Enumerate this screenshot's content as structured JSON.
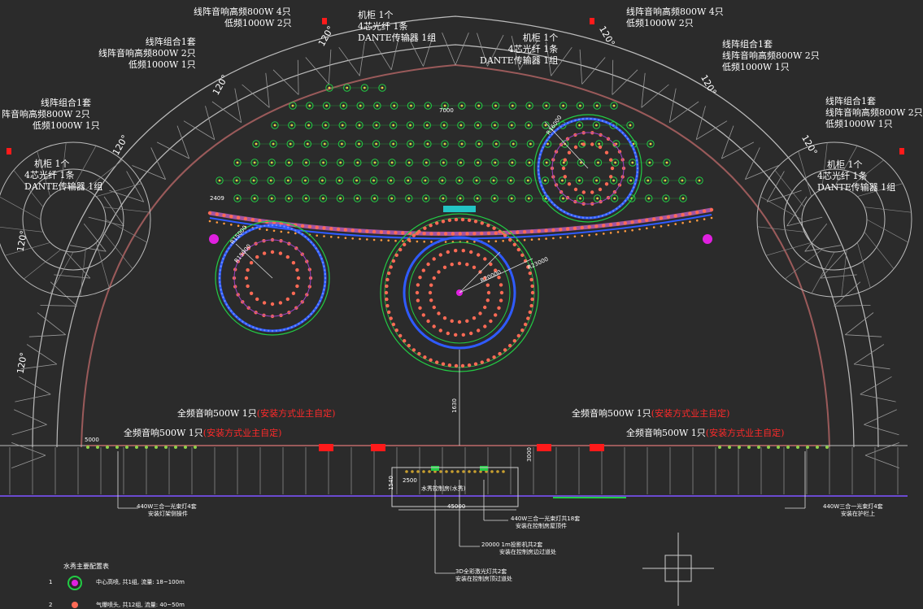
{
  "speaker_groups": {
    "top_left": [
      "线阵音响高频800W 4只",
      "低频1000W 2只"
    ],
    "top_center_cab": [
      "机柜 1个",
      "4芯光纤 1条",
      "DANTE传输器 1组"
    ],
    "top_right_cab": [
      "机柜 1个",
      "4芯光纤 1条",
      "DANTE传输器 1组"
    ],
    "top_right": [
      "线阵音响高频800W 4只",
      "低频1000W 2只"
    ],
    "upper_left": [
      "线阵组合1套",
      "线阵音响高频800W 2只",
      "低频1000W 1只"
    ],
    "upper_right": [
      "线阵组合1套",
      "线阵音响高频800W 2只",
      "低频1000W 1只"
    ],
    "mid_left": [
      "线阵组合1套",
      "阵音响高频800W 2只",
      "低频1000W 1只"
    ],
    "mid_right": [
      "线阵组合1套",
      "线阵音响高频800W 2只",
      "低频1000W 1只"
    ],
    "side_left_cab": [
      "机柜 1个",
      "4芯光纤 1条",
      "DANTE传输器 1组"
    ],
    "side_right_cab": [
      "机柜 1个",
      "4芯光纤 1条",
      "DANTE传输器 1组"
    ]
  },
  "angle_labels": [
    "120°",
    "120°",
    "120°",
    "120°",
    "120°",
    "120°",
    "120°",
    "120°"
  ],
  "fullrange": {
    "a_text": "全频音响500W 1只",
    "a_note": "(安装方式业主自定)",
    "b_text": "全频音响500W 1只",
    "b_note": "(安装方式业主自定)",
    "c_text": "全频音响500W 1只",
    "c_note": "(安装方式业主自定)",
    "d_text": "全频音响500W 1只",
    "d_note": "(安装方式业主自定)"
  },
  "dims": {
    "d7000": "7000",
    "d2409": "2409",
    "d5000": "5000",
    "d2500": "2500",
    "d45000": "45000",
    "d1540": "1540",
    "d1630": "1630",
    "d3000": "3000",
    "r_small": "R15000",
    "r_big": "R20000",
    "r_big2": "R23000",
    "r_right": "R16000",
    "r_left": "R15000"
  },
  "bottom_notes": {
    "left": [
      "440W三合一光束灯4套",
      "安装灯架侧操件"
    ],
    "right": [
      "440W三合一光束灯4套",
      "安装在护栏上"
    ],
    "center_a": [
      "440W三合一光束灯共18套",
      "安装在控制房屋顶件"
    ],
    "center_b": [
      "20000 1m投影机共2套",
      "安装在控制房边过道处"
    ],
    "center_c": [
      "3D全彩激光灯共2套",
      "安装在控制房顶过道处"
    ],
    "control_room": "水秀控制房(水秀)"
  },
  "legend": {
    "title": "水秀主要配置表",
    "row1_num": "1",
    "row1_text": "中心高喷, 共1组, 流量: 18~100m",
    "row2_num": "2",
    "row2_text": "气爆喷头, 共12组, 流量: 40~50m"
  },
  "colors": {
    "background": "#2b2b2b",
    "outline": "#9a5a5a",
    "green_ring": "#22cc44",
    "blue_ring": "#2f5bff",
    "dots": "#ff6a55",
    "magenta": "#e020e0",
    "cyan": "#22e0e0",
    "red_block": "#ff1a1a"
  }
}
